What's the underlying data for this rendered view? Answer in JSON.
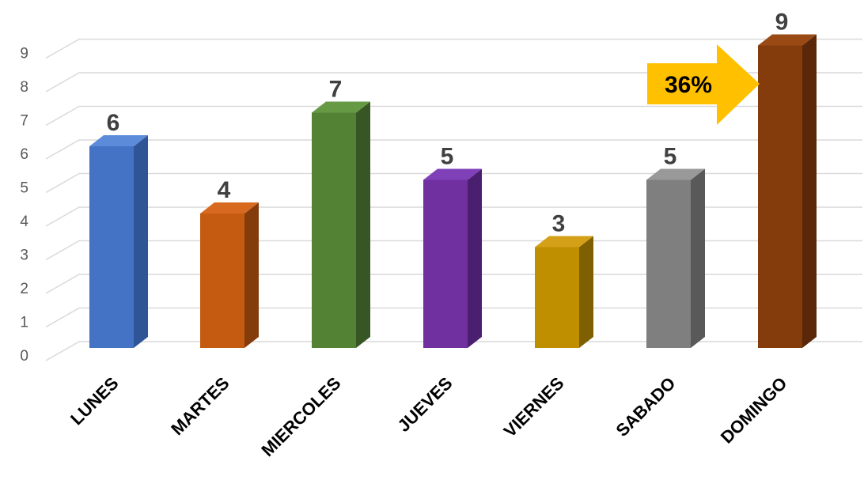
{
  "chart_data": {
    "type": "bar",
    "style": "3d-column",
    "categories": [
      "LUNES",
      "MARTES",
      "MIERCOLES",
      "JUEVES",
      "VIERNES",
      "SABADO",
      "DOMINGO"
    ],
    "values": [
      6,
      4,
      7,
      5,
      3,
      5,
      9
    ],
    "colors": [
      "#4472C4",
      "#C55A11",
      "#548235",
      "#7030A0",
      "#BF8F00",
      "#7F7F7F",
      "#843C0C"
    ],
    "side_colors": [
      "#2F5597",
      "#843C0C",
      "#375623",
      "#4B1F6F",
      "#7F6000",
      "#595959",
      "#5A2708"
    ],
    "top_colors": [
      "#5B8BD9",
      "#D86A1F",
      "#669944",
      "#8040B8",
      "#D4A017",
      "#999999",
      "#9A4A14"
    ],
    "ylim": [
      0,
      9
    ],
    "yticks": [
      "0",
      "1",
      "2",
      "3",
      "4",
      "5",
      "6",
      "7",
      "8",
      "9"
    ],
    "data_labels": [
      "6",
      "4",
      "7",
      "5",
      "3",
      "5",
      "9"
    ],
    "grid": true,
    "title": "",
    "xlabel": "",
    "ylabel": "",
    "annotation": {
      "text": "36%",
      "color": "#FFC000",
      "points_to": "DOMINGO"
    }
  }
}
